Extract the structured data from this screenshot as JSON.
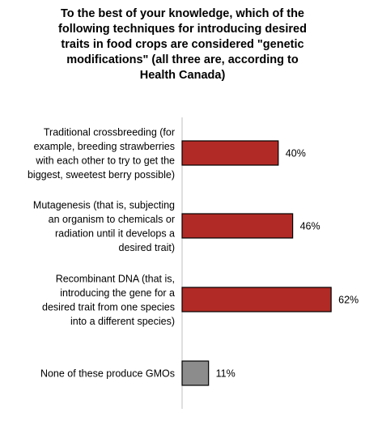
{
  "chart_data": {
    "type": "bar",
    "orientation": "horizontal",
    "title_lines": [
      "To the best of your knowledge, which of the",
      "following techniques for introducing desired",
      "traits in food crops are considered \"genetic",
      "modifications\" (all three are, according to",
      "Health Canada)"
    ],
    "categories": [
      [
        "Traditional crossbreeding (for",
        "example, breeding strawberries",
        "with each other to try to get the",
        "biggest, sweetest berry possible)"
      ],
      [
        "Mutagenesis (that is, subjecting",
        "an organism to chemicals or",
        "radiation until it develops a",
        "desired trait)"
      ],
      [
        "Recombinant DNA (that is,",
        "introducing the gene for a",
        "desired trait from one species",
        "into a different species)"
      ],
      [
        "None of these produce GMOs"
      ]
    ],
    "values": [
      40,
      46,
      62,
      11
    ],
    "value_labels": [
      "40%",
      "46%",
      "62%",
      "11%"
    ],
    "bar_colors": [
      "#b22a25",
      "#b22a25",
      "#b22a25",
      "#8c8c8c"
    ],
    "xlim": [
      0,
      100
    ],
    "grid": false,
    "legend": "none"
  }
}
